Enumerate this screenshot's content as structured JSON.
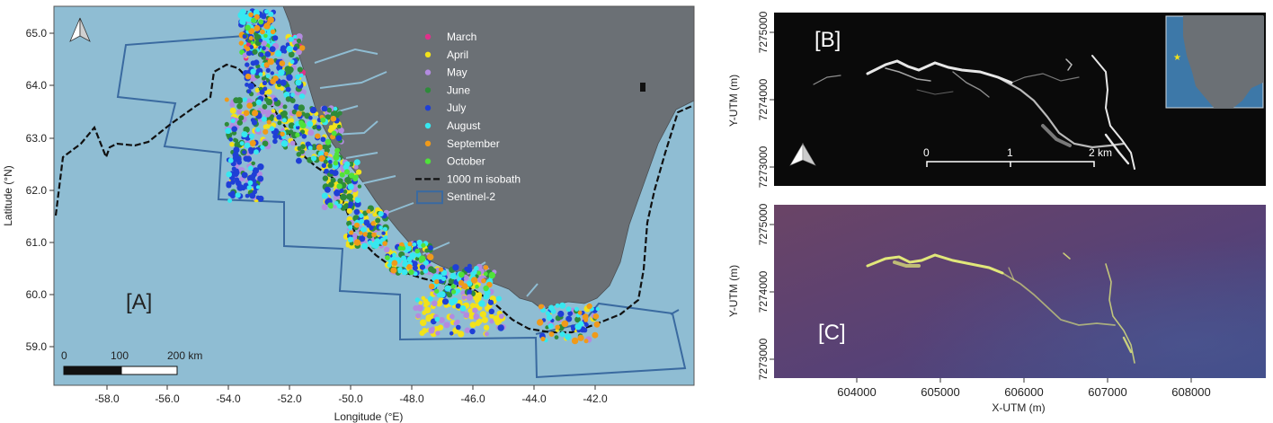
{
  "panel_a": {
    "label": "[A]",
    "x_axis_title": "Longitude (°E)",
    "y_axis_title": "Latitude (°N)",
    "x_ticks": [
      "-58.0",
      "-56.0",
      "-54.0",
      "-52.0",
      "-50.0",
      "-48.0",
      "-46.0",
      "-44.0",
      "-42.0"
    ],
    "y_ticks": [
      "65.0",
      "64.0",
      "63.0",
      "62.0",
      "61.0",
      "60.0",
      "59.0"
    ],
    "legend": [
      {
        "label": "March",
        "color": "#e0308a",
        "kind": "dot"
      },
      {
        "label": "April",
        "color": "#f2e21a",
        "kind": "dot"
      },
      {
        "label": "May",
        "color": "#b38be0",
        "kind": "dot"
      },
      {
        "label": "June",
        "color": "#2e8b3a",
        "kind": "dot"
      },
      {
        "label": "July",
        "color": "#1f3fd6",
        "kind": "dot"
      },
      {
        "label": "August",
        "color": "#37e8f0",
        "kind": "dot"
      },
      {
        "label": "September",
        "color": "#f09a1a",
        "kind": "dot"
      },
      {
        "label": "October",
        "color": "#4fe23a",
        "kind": "dot"
      },
      {
        "label": "1000 m isobath",
        "color": "#111111",
        "kind": "dash"
      },
      {
        "label": "Sentinel-2",
        "color": "#3a6aa0",
        "kind": "box"
      }
    ],
    "scale_bar": {
      "labels": [
        "0",
        "100",
        "200 km"
      ]
    },
    "colors": {
      "ocean": "#8fbdd3",
      "land": "#6b7075",
      "isobath": "#111111",
      "footprint": "#3a6aa0"
    }
  },
  "panel_b": {
    "label": "[B]",
    "y_axis_title": "Y-UTM (m)",
    "y_ticks": [
      "7275000",
      "7274000",
      "7273000"
    ],
    "scale_bar": {
      "labels": [
        "0",
        "1",
        "2 km"
      ]
    },
    "colors": {
      "background": "#0a0a0a",
      "inset_ocean": "#3d78a8",
      "inset_land": "#6b7075",
      "inset_marker": "#f2e21a"
    }
  },
  "panel_c": {
    "label": "[C]",
    "x_axis_title": "X-UTM (m)",
    "y_axis_title": "Y-UTM (m)",
    "x_ticks": [
      "604000",
      "605000",
      "606000",
      "607000",
      "608000"
    ],
    "y_ticks": [
      "7275000",
      "7274000",
      "7273000"
    ],
    "colors": {
      "background": "#5a3f6e",
      "filament": "#e8f07a"
    }
  }
}
